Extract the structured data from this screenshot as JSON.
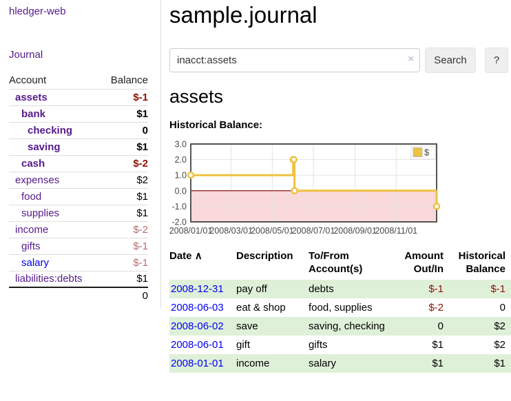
{
  "app": {
    "brand": "hledger-web",
    "nav": "Journal"
  },
  "header": {
    "title": "sample.journal"
  },
  "search": {
    "value": "inacct:assets",
    "clear_icon": "×",
    "button_label": "Search",
    "help_label": "?"
  },
  "sidebar": {
    "columns": {
      "account": "Account",
      "balance": "Balance"
    },
    "accounts": [
      {
        "name": "assets",
        "depth": 1,
        "bold": true,
        "balance": "$-1",
        "balance_style": "neg-strong"
      },
      {
        "name": "bank",
        "depth": 2,
        "bold": true,
        "balance": "$1",
        "balance_style": ""
      },
      {
        "name": "checking",
        "depth": 3,
        "bold": true,
        "balance": "0",
        "balance_style": ""
      },
      {
        "name": "saving",
        "depth": 3,
        "bold": true,
        "balance": "$1",
        "balance_style": ""
      },
      {
        "name": "cash",
        "depth": 2,
        "bold": true,
        "balance": "$-2",
        "balance_style": "neg-strong"
      },
      {
        "name": "expenses",
        "depth": 1,
        "bold": false,
        "balance": "$2",
        "balance_style": ""
      },
      {
        "name": "food",
        "depth": 2,
        "bold": false,
        "balance": "$1",
        "balance_style": ""
      },
      {
        "name": "supplies",
        "depth": 2,
        "bold": false,
        "balance": "$1",
        "balance_style": ""
      },
      {
        "name": "income",
        "depth": 1,
        "bold": false,
        "balance": "$-2",
        "balance_style": "neg-soft"
      },
      {
        "name": "gifts",
        "depth": 2,
        "bold": false,
        "balance": "$-1",
        "balance_style": "neg-soft"
      },
      {
        "name": "salary",
        "depth": 2,
        "bold": false,
        "balance": "$-1",
        "balance_style": "neg-soft",
        "link_style": "blue"
      },
      {
        "name": "liabilities:debts",
        "depth": 1,
        "bold": false,
        "balance": "$1",
        "balance_style": ""
      }
    ],
    "total": "0"
  },
  "account_view": {
    "heading": "assets",
    "chart_label": "Historical Balance:"
  },
  "chart_data": {
    "type": "line",
    "step": true,
    "series": [
      {
        "name": "$",
        "color": "#edc240",
        "points": [
          [
            "2008-01-01",
            1
          ],
          [
            "2008-06-01",
            2
          ],
          [
            "2008-06-02",
            2
          ],
          [
            "2008-06-03",
            0
          ],
          [
            "2008-12-31",
            -1
          ]
        ]
      }
    ],
    "x_ticks": [
      "2008/01/01",
      "2008/03/01",
      "2008/05/01",
      "2008/07/01",
      "2008/09/01",
      "2008/11/01"
    ],
    "y_ticks": [
      3.0,
      2.0,
      1.0,
      0.0,
      -1.0,
      -2.0
    ],
    "xlim": [
      "2008-01-01",
      "2008-12-31"
    ],
    "ylim": [
      -2,
      3
    ],
    "legend": {
      "label": "$",
      "position": "top-right"
    },
    "grid": true,
    "negative_region_color": "#f9d9d9",
    "zero_line_color": "#7a0000"
  },
  "register": {
    "columns": {
      "date": "Date",
      "description": "Description",
      "tofrom": "To/From Account(s)",
      "amount": "Amount Out/In",
      "balance": "Historical Balance"
    },
    "sort_indicator": "∧",
    "rows": [
      {
        "date": "2008-12-31",
        "description": "pay off",
        "accounts": "debts",
        "amount": "$-1",
        "balance": "$-1",
        "amount_negative": true,
        "balance_negative": true,
        "shaded": true
      },
      {
        "date": "2008-06-03",
        "description": "eat & shop",
        "accounts": "food, supplies",
        "amount": "$-2",
        "balance": "0",
        "amount_negative": true,
        "balance_negative": false,
        "shaded": false
      },
      {
        "date": "2008-06-02",
        "description": "save",
        "accounts": "saving, checking",
        "amount": "0",
        "balance": "$2",
        "amount_negative": false,
        "balance_negative": false,
        "shaded": true
      },
      {
        "date": "2008-06-01",
        "description": "gift",
        "accounts": "gifts",
        "amount": "$1",
        "balance": "$2",
        "amount_negative": false,
        "balance_negative": false,
        "shaded": false
      },
      {
        "date": "2008-01-01",
        "description": "income",
        "accounts": "salary",
        "amount": "$1",
        "balance": "$1",
        "amount_negative": false,
        "balance_negative": false,
        "shaded": true
      }
    ]
  },
  "colors": {
    "link_purple": "#551a8b",
    "link_blue": "#0000ee",
    "negative_strong": "#8c1004",
    "negative_soft": "#b36d6d",
    "row_highlight": "#dff0d8",
    "chart_line": "#edc240",
    "chart_border": "#545454",
    "divider": "#dddddd"
  }
}
